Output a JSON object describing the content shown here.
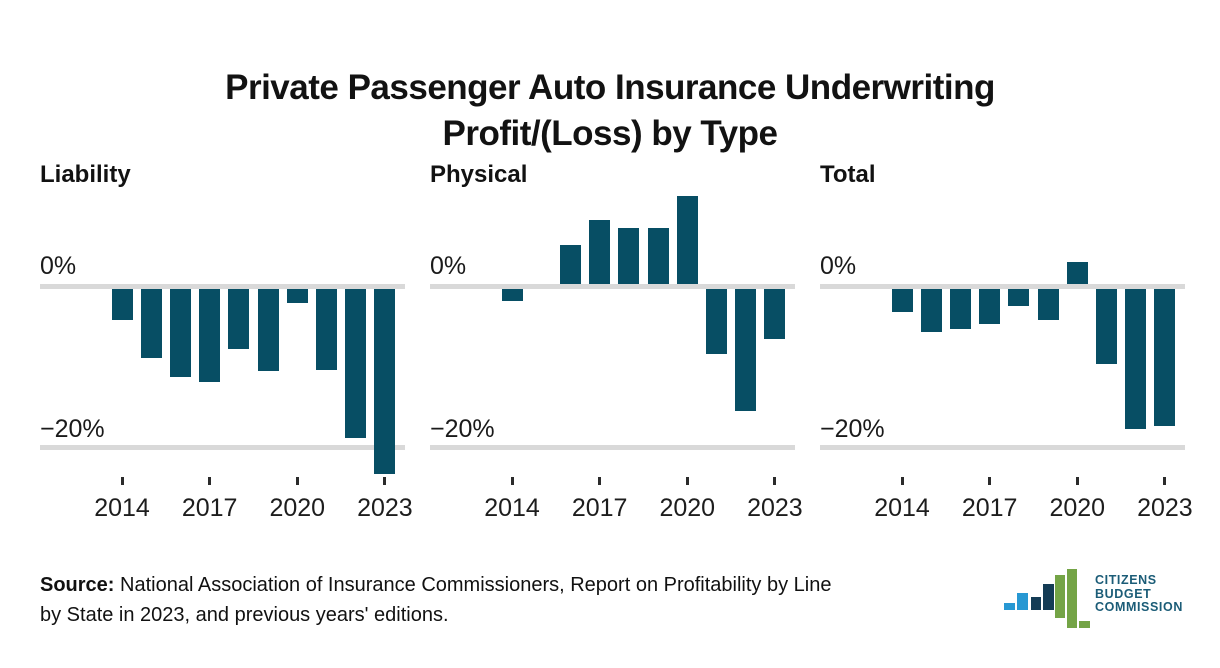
{
  "title": {
    "line1": "Private Passenger Auto Insurance Underwriting",
    "line2": "Profit/(Loss) by Type"
  },
  "chart_data": {
    "type": "bar",
    "title": "Private Passenger Auto Insurance Underwriting Profit/(Loss) by Type",
    "unit": "percent",
    "x": [
      "2014",
      "2015",
      "2016",
      "2017",
      "2018",
      "2019",
      "2020",
      "2021",
      "2022",
      "2023"
    ],
    "x_ticks_shown": [
      "2014",
      "2017",
      "2020",
      "2023"
    ],
    "y_axis": {
      "labels": [
        "0%",
        "−20%"
      ],
      "gridline_values": [
        0,
        -20
      ]
    },
    "ylim": [
      -24,
      12
    ],
    "legend": "none",
    "series": [
      {
        "name": "Liability",
        "values": [
          -3.8,
          -8.6,
          -10.9,
          -11.6,
          -7.5,
          -10.2,
          -1.7,
          -10.0,
          -18.5,
          -23.0
        ]
      },
      {
        "name": "Physical",
        "values": [
          -1.5,
          0,
          4.8,
          8.0,
          7.0,
          7.0,
          10.9,
          -8.1,
          -15.2,
          -6.2
        ]
      },
      {
        "name": "Total",
        "values": [
          -2.9,
          -5.4,
          -5.0,
          -4.3,
          -2.1,
          -3.8,
          2.7,
          -9.3,
          -17.4,
          -17.0
        ]
      }
    ],
    "bar_color": "#074e64"
  },
  "source": {
    "label": "Source:",
    "line1_rest": " National Association of Insurance Commissioners, Report on Profitability by Line",
    "line2": "by State in 2023, and previous years' editions."
  },
  "logo": {
    "line1": "CITIZENS",
    "line2": "BUDGET",
    "line3": "COMMISSION"
  },
  "colors": {
    "bar": "#074e64",
    "gridline": "#d9d9d9",
    "text": "#111111",
    "logo_blue": "#2798d3",
    "logo_navy": "#143c55",
    "logo_green": "#74a446",
    "logo_text": "#1b5c77"
  }
}
